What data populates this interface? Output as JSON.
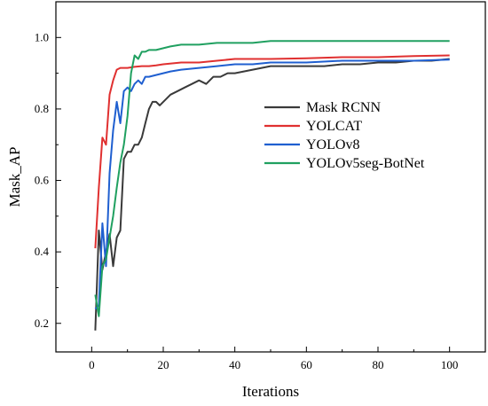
{
  "chart_data": {
    "type": "line",
    "title": "",
    "xlabel": "Iterations",
    "ylabel": "Mask_AP",
    "xlim": [
      -10,
      110
    ],
    "ylim": [
      0.12,
      1.1
    ],
    "xticks": [
      0,
      20,
      40,
      60,
      80,
      100
    ],
    "yticks": [
      0.2,
      0.4,
      0.6,
      0.8,
      1.0
    ],
    "ytick_labels": [
      "0.2",
      "0.4",
      "0.6",
      "0.8",
      "1.0"
    ],
    "grid": false,
    "legend_position": "center-right",
    "series": [
      {
        "name": "Mask RCNN",
        "color": "#3a3a3a",
        "x": [
          1,
          2,
          3,
          4,
          5,
          6,
          7,
          8,
          9,
          10,
          11,
          12,
          13,
          14,
          15,
          16,
          17,
          18,
          19,
          20,
          22,
          24,
          26,
          28,
          30,
          32,
          34,
          36,
          38,
          40,
          45,
          50,
          55,
          60,
          65,
          70,
          75,
          80,
          85,
          90,
          95,
          100
        ],
        "y": [
          0.18,
          0.46,
          0.35,
          0.4,
          0.45,
          0.36,
          0.44,
          0.46,
          0.66,
          0.68,
          0.68,
          0.7,
          0.7,
          0.72,
          0.76,
          0.8,
          0.82,
          0.82,
          0.81,
          0.82,
          0.84,
          0.85,
          0.86,
          0.87,
          0.88,
          0.87,
          0.89,
          0.89,
          0.9,
          0.9,
          0.91,
          0.92,
          0.92,
          0.92,
          0.92,
          0.925,
          0.925,
          0.93,
          0.93,
          0.935,
          0.935,
          0.94
        ]
      },
      {
        "name": "YOLCAT",
        "color": "#e03030",
        "x": [
          1,
          2,
          3,
          4,
          5,
          6,
          7,
          8,
          9,
          10,
          12,
          14,
          16,
          18,
          20,
          25,
          30,
          35,
          40,
          50,
          60,
          70,
          80,
          90,
          100
        ],
        "y": [
          0.41,
          0.58,
          0.72,
          0.7,
          0.84,
          0.88,
          0.91,
          0.915,
          0.915,
          0.915,
          0.918,
          0.92,
          0.92,
          0.922,
          0.925,
          0.93,
          0.93,
          0.935,
          0.94,
          0.94,
          0.942,
          0.945,
          0.945,
          0.948,
          0.95
        ]
      },
      {
        "name": "YOLOv8",
        "color": "#1f5fd0",
        "x": [
          1,
          2,
          3,
          4,
          5,
          6,
          7,
          8,
          9,
          10,
          11,
          12,
          13,
          14,
          15,
          16,
          18,
          20,
          22,
          25,
          30,
          35,
          40,
          45,
          50,
          55,
          60,
          70,
          80,
          90,
          100
        ],
        "y": [
          0.24,
          0.25,
          0.48,
          0.36,
          0.62,
          0.74,
          0.82,
          0.76,
          0.85,
          0.86,
          0.85,
          0.87,
          0.88,
          0.87,
          0.89,
          0.89,
          0.895,
          0.9,
          0.905,
          0.91,
          0.915,
          0.92,
          0.925,
          0.925,
          0.93,
          0.93,
          0.93,
          0.935,
          0.935,
          0.935,
          0.938
        ]
      },
      {
        "name": "YOLOv5seg-BotNet",
        "color": "#20a060",
        "x": [
          1,
          2,
          3,
          4,
          5,
          6,
          7,
          8,
          9,
          10,
          11,
          12,
          13,
          14,
          15,
          16,
          18,
          20,
          22,
          25,
          30,
          35,
          40,
          45,
          50,
          60,
          70,
          80,
          90,
          100
        ],
        "y": [
          0.28,
          0.22,
          0.36,
          0.38,
          0.44,
          0.5,
          0.58,
          0.65,
          0.7,
          0.78,
          0.9,
          0.95,
          0.94,
          0.96,
          0.96,
          0.965,
          0.965,
          0.97,
          0.975,
          0.98,
          0.98,
          0.985,
          0.985,
          0.985,
          0.99,
          0.99,
          0.99,
          0.99,
          0.99,
          0.99
        ]
      }
    ]
  }
}
